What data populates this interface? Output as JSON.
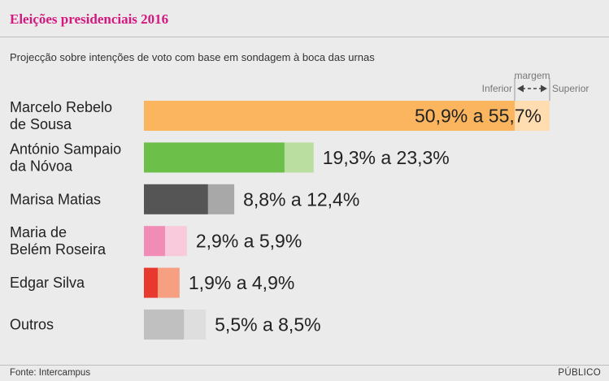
{
  "header": {
    "title": "Eleições presidenciais 2016",
    "subtitle": "Projecção sobre intenções de voto com base em sondagem à boca das urnas"
  },
  "legend": {
    "lower_label": "Inferior",
    "upper_label": "Superior",
    "margin_label": "margem"
  },
  "footer": {
    "source": "Fonte: Intercampus",
    "brand": "PÚBLICO"
  },
  "colors": {
    "title": "#d4187f",
    "candidates": [
      {
        "dark": "#fbb55f",
        "light": "#ffddb0"
      },
      {
        "dark": "#6cc04a",
        "light": "#b9de9f"
      },
      {
        "dark": "#555555",
        "light": "#a8a8a8"
      },
      {
        "dark": "#f18cb6",
        "light": "#f9c9dc"
      },
      {
        "dark": "#e8392f",
        "light": "#f7a081"
      },
      {
        "dark": "#c0c0c0",
        "light": "#dedede"
      }
    ]
  },
  "chart_data": {
    "type": "bar",
    "subtype": "range",
    "title": "Eleições presidenciais 2016",
    "subtitle": "Projecção sobre intenções de voto com base em sondagem à boca das urnas",
    "unit": "%",
    "categories": [
      [
        "Marcelo Rebelo",
        "de Sousa"
      ],
      [
        "António Sampaio",
        "da Nóvoa"
      ],
      [
        "Marisa Matias"
      ],
      [
        "Maria de",
        "Belém Roseira"
      ],
      [
        "Edgar Silva"
      ],
      [
        "Outros"
      ]
    ],
    "series": [
      {
        "name": "Inferior",
        "values": [
          50.9,
          19.3,
          8.8,
          2.9,
          1.9,
          5.5
        ]
      },
      {
        "name": "Superior",
        "values": [
          55.7,
          23.3,
          12.4,
          5.9,
          4.9,
          8.5
        ]
      }
    ],
    "range_labels": [
      "50,9% a 55,7%",
      "19,3% a 23,3%",
      "8,8% a 12,4%",
      "2,9% a 5,9%",
      "1,9% a 4,9%",
      "5,5% a 8,5%"
    ],
    "xlim": [
      0,
      55.7
    ],
    "grid": false
  }
}
